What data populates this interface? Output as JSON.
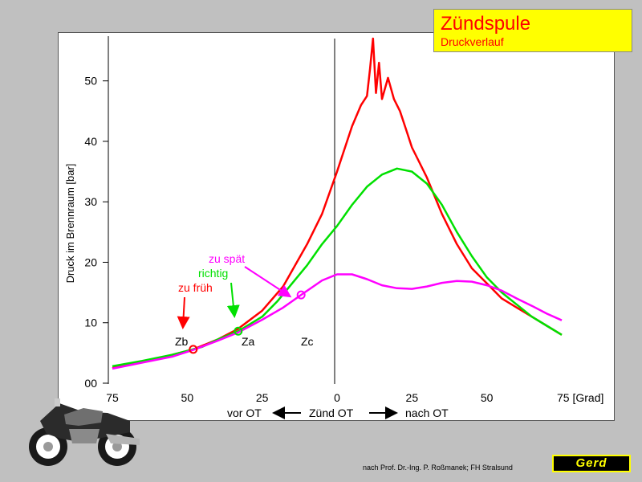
{
  "title_box": {
    "title": "Zündspule",
    "subtitle": "Druckverlauf"
  },
  "credit": "nach Prof. Dr.-Ing. P. Roßmanek; FH Stralsund",
  "logo_text": "Gerd",
  "colors": {
    "red": "#ff0000",
    "green": "#00e000",
    "magenta": "#ff00ff",
    "title_bg": "#ffff00",
    "background": "#c0c0c0"
  },
  "chart_data": {
    "type": "line",
    "title": "Zündspule",
    "subtitle": "Druckverlauf",
    "ylabel": "Druck im Brennraum [bar]",
    "xlabel": "[Grad]",
    "ylim": [
      0,
      57
    ],
    "xlim": [
      -75,
      75
    ],
    "x_signed_ticks": [
      -75,
      -50,
      -25,
      0,
      25,
      50,
      75
    ],
    "xtick_labels": [
      "75",
      "50",
      "25",
      "0",
      "25",
      "50",
      "75 [Grad]"
    ],
    "y_ticks": [
      0,
      10,
      20,
      30,
      40,
      50
    ],
    "ytick_labels": [
      "00",
      "10",
      "20",
      "30",
      "40",
      "50"
    ],
    "grid": false,
    "direction_labels": {
      "before": "vor OT",
      "center": "Zünd OT",
      "after": "nach OT"
    },
    "series": [
      {
        "name": "zu früh",
        "color": "#ff0000",
        "x": [
          -75,
          -65,
          -55,
          -48,
          -40,
          -33,
          -25,
          -18,
          -10,
          -5,
          0,
          5,
          8,
          10,
          11,
          12,
          13,
          14,
          15,
          17,
          19,
          21,
          23,
          25,
          27,
          30,
          35,
          40,
          45,
          50,
          55,
          60,
          65,
          70,
          75
        ],
        "y": [
          2.5,
          3.5,
          4.7,
          5.6,
          7.2,
          9.0,
          12.0,
          16.0,
          23.0,
          28.0,
          35.0,
          42.5,
          46.0,
          47.5,
          52.0,
          57.0,
          48.0,
          53.0,
          47.0,
          50.5,
          47.0,
          45.0,
          42.0,
          39.0,
          37.0,
          34.0,
          28.0,
          23.0,
          19.0,
          16.5,
          14.0,
          12.5,
          11.0,
          9.5,
          8.0
        ]
      },
      {
        "name": "richtig",
        "color": "#00e000",
        "x": [
          -75,
          -65,
          -55,
          -45,
          -40,
          -33,
          -25,
          -20,
          -15,
          -10,
          -5,
          0,
          5,
          10,
          15,
          20,
          25,
          30,
          35,
          40,
          45,
          50,
          55,
          60,
          65,
          70,
          75
        ],
        "y": [
          2.8,
          3.7,
          4.7,
          6.0,
          7.2,
          8.6,
          11.0,
          13.5,
          16.5,
          19.5,
          23.0,
          26.0,
          29.5,
          32.5,
          34.5,
          35.5,
          35.0,
          33.0,
          29.5,
          25.0,
          21.0,
          17.5,
          15.0,
          13.0,
          11.0,
          9.5,
          8.0
        ]
      },
      {
        "name": "zu spät",
        "color": "#ff00ff",
        "x": [
          -75,
          -65,
          -55,
          -48,
          -40,
          -33,
          -25,
          -18,
          -12,
          -5,
          0,
          5,
          10,
          15,
          20,
          25,
          30,
          35,
          40,
          45,
          50,
          55,
          60,
          65,
          70,
          75
        ],
        "y": [
          2.4,
          3.4,
          4.4,
          5.5,
          7.0,
          8.4,
          10.5,
          12.5,
          14.6,
          17.0,
          18.0,
          18.0,
          17.2,
          16.2,
          15.7,
          15.6,
          16.0,
          16.6,
          16.9,
          16.8,
          16.2,
          15.3,
          14.0,
          12.8,
          11.5,
          10.4
        ]
      }
    ],
    "ignition_points": [
      {
        "label": "Zb",
        "x": -48,
        "y": 5.6,
        "color": "#ff0000"
      },
      {
        "label": "Za",
        "x": -33,
        "y": 8.6,
        "color": "#00e000"
      },
      {
        "label": "Zc",
        "x": -12,
        "y": 14.6,
        "color": "#ff00ff"
      }
    ],
    "annotations": [
      {
        "text": "zu früh",
        "color": "#ff0000",
        "target": "Zb"
      },
      {
        "text": "richtig",
        "color": "#00e000",
        "target": "Za"
      },
      {
        "text": "zu spät",
        "color": "#ff00ff",
        "target": "Zc"
      }
    ]
  }
}
